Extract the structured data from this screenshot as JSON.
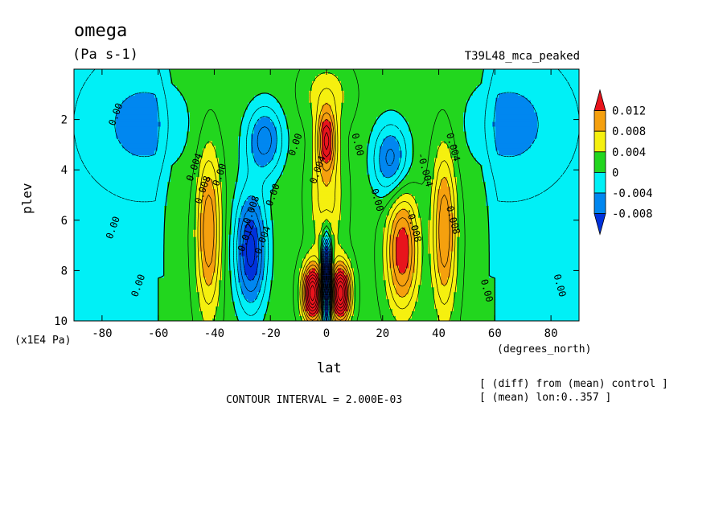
{
  "header": {
    "title": "omega",
    "units": "(Pa s-1)",
    "experiment": "T39L48_mca_peaked"
  },
  "footer": {
    "contour_interval": "CONTOUR INTERVAL = 2.000E-03",
    "note1": "[ (diff) from (mean) control ]",
    "note2": "[ (mean) lon:0..357 ]"
  },
  "chart_data": {
    "type": "heatmap",
    "title": "omega",
    "units": "(Pa s-1)",
    "xlabel": "lat",
    "xunits": "(degrees_north)",
    "ylabel": "plev",
    "yunits": "(x1E4 Pa)",
    "xlim": [
      -90,
      90
    ],
    "ylim": [
      0,
      10
    ],
    "y_inverted": true,
    "x_ticks": [
      -80,
      -60,
      -40,
      -20,
      0,
      20,
      40,
      60,
      80
    ],
    "x_tick_labels": [
      "-80",
      "-60",
      "-40",
      "-20",
      "0",
      "20",
      "40",
      "60",
      "80"
    ],
    "y_ticks": [
      2,
      4,
      6,
      8,
      10
    ],
    "y_tick_labels": [
      "2",
      "4",
      "6",
      "8",
      "10"
    ],
    "contour_interval": 0.002,
    "colorbar": {
      "labels": [
        "0.012",
        "0.008",
        "0.004",
        "0",
        "-0.004",
        "-0.008"
      ],
      "bins": [
        {
          "range": "> 0.012",
          "color": "#e8141c"
        },
        {
          "range": "0.008 to 0.012",
          "color": "#f5a00e"
        },
        {
          "range": "0.004 to 0.008",
          "color": "#f5f00f"
        },
        {
          "range": "0 to 0.004",
          "color": "#22d61e"
        },
        {
          "range": "-0.004 to 0",
          "color": "#00f0f6"
        },
        {
          "range": "-0.008 to -0.004",
          "color": "#0087f0"
        },
        {
          "range": "< -0.008",
          "color": "#0032dc"
        }
      ]
    },
    "features": [
      {
        "lat": -42,
        "plev": 6.5,
        "value": 0.01,
        "kind": "descent maximum"
      },
      {
        "lat": 42,
        "plev": 6.5,
        "value": 0.01,
        "kind": "descent maximum"
      },
      {
        "lat": 0,
        "plev": 2.8,
        "value": 0.013,
        "kind": "upper maximum"
      },
      {
        "lat": -5,
        "plev": 8.9,
        "value": 0.02,
        "kind": "lower maximum"
      },
      {
        "lat": 5,
        "plev": 8.9,
        "value": 0.02,
        "kind": "lower maximum"
      },
      {
        "lat": 0,
        "plev": 8.5,
        "value": -0.01,
        "kind": "minimum"
      },
      {
        "lat": -26,
        "plev": 7.0,
        "value": -0.01,
        "kind": "ascent minimum"
      },
      {
        "lat": 26,
        "plev": 7.0,
        "value": -0.01,
        "kind": "ascent minimum"
      },
      {
        "lat": -23,
        "plev": 2.8,
        "value": -0.008,
        "kind": "upper minimum"
      },
      {
        "lat": 23,
        "plev": 3.6,
        "value": -0.008,
        "kind": "upper minimum"
      }
    ],
    "contour_labels": [
      {
        "text": "0.00",
        "lat": -75,
        "plev": 1.8
      },
      {
        "text": "0.004",
        "lat": -47,
        "plev": 3.9
      },
      {
        "text": "0.008",
        "lat": -44,
        "plev": 4.8
      },
      {
        "text": "0.00",
        "lat": -38,
        "plev": 4.2
      },
      {
        "text": "0.00",
        "lat": -76,
        "plev": 6.3
      },
      {
        "text": "0.00",
        "lat": -67,
        "plev": 8.6
      },
      {
        "text": "-0.012",
        "lat": -29,
        "plev": 6.8
      },
      {
        "text": "-0.008",
        "lat": -27,
        "plev": 5.7
      },
      {
        "text": "-0.004",
        "lat": -23,
        "plev": 6.9
      },
      {
        "text": "0.00",
        "lat": -19,
        "plev": 5.0
      },
      {
        "text": "0.00",
        "lat": -11,
        "plev": 3.0
      },
      {
        "text": "0.004",
        "lat": -3,
        "plev": 4.0
      },
      {
        "text": "0.00",
        "lat": 11,
        "plev": 3.0
      },
      {
        "text": "0.00",
        "lat": 18,
        "plev": 5.2
      },
      {
        "text": "-0.008",
        "lat": 31,
        "plev": 6.2
      },
      {
        "text": "-0.004",
        "lat": 35,
        "plev": 4.0
      },
      {
        "text": "0.004",
        "lat": 45,
        "plev": 3.1
      },
      {
        "text": "0.008",
        "lat": 45,
        "plev": 6.0
      },
      {
        "text": "0.00",
        "lat": 57,
        "plev": 8.8
      },
      {
        "text": "0.00",
        "lat": 83,
        "plev": 8.6
      }
    ]
  }
}
